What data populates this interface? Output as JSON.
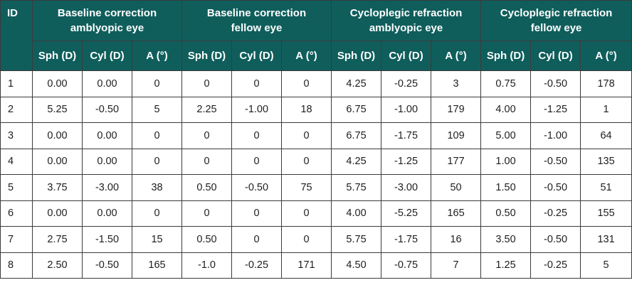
{
  "table": {
    "id_header": "ID",
    "groups": [
      {
        "line1": "Baseline correction",
        "line2": "amblyopic eye"
      },
      {
        "line1": "Baseline correction",
        "line2": "fellow eye"
      },
      {
        "line1": "Cycloplegic refraction",
        "line2": "amblyopic eye"
      },
      {
        "line1": "Cycloplegic refraction",
        "line2": "fellow eye"
      }
    ],
    "subheaders": [
      "Sph (D)",
      "Cyl (D)",
      "A (°)"
    ],
    "rows": [
      [
        "1",
        "0.00",
        "0.00",
        "0",
        "0",
        "0",
        "0",
        "4.25",
        "-0.25",
        "3",
        "0.75",
        "-0.50",
        "178"
      ],
      [
        "2",
        "5.25",
        "-0.50",
        "5",
        "2.25",
        "-1.00",
        "18",
        "6.75",
        "-1.00",
        "179",
        "4.00",
        "-1.25",
        "1"
      ],
      [
        "3",
        "0.00",
        "0.00",
        "0",
        "0",
        "0",
        "0",
        "6.75",
        "-1.75",
        "109",
        "5.00",
        "-1.00",
        "64"
      ],
      [
        "4",
        "0.00",
        "0.00",
        "0",
        "0",
        "0",
        "0",
        "4.25",
        "-1.25",
        "177",
        "1.00",
        "-0.50",
        "135"
      ],
      [
        "5",
        "3.75",
        "-3.00",
        "38",
        "0.50",
        "-0.50",
        "75",
        "5.75",
        "-3.00",
        "50",
        "1.50",
        "-0.50",
        "51"
      ],
      [
        "6",
        "0.00",
        "0.00",
        "0",
        "0",
        "0",
        "0",
        "4.00",
        "-5.25",
        "165",
        "0.50",
        "-0.25",
        "155"
      ],
      [
        "7",
        "2.75",
        "-1.50",
        "15",
        "0.50",
        "0",
        "0",
        "5.75",
        "-1.75",
        "16",
        "3.50",
        "-0.50",
        "131"
      ],
      [
        "8",
        "2.50",
        "-0.50",
        "165",
        "-1.0",
        "-0.25",
        "171",
        "4.50",
        "-0.75",
        "7",
        "1.25",
        "-0.25",
        "5"
      ]
    ]
  },
  "colors": {
    "header_background": "#0f5e5c",
    "header_text": "#ffffff",
    "border": "#3b3b3b",
    "cell_text": "#1e1e1e"
  }
}
